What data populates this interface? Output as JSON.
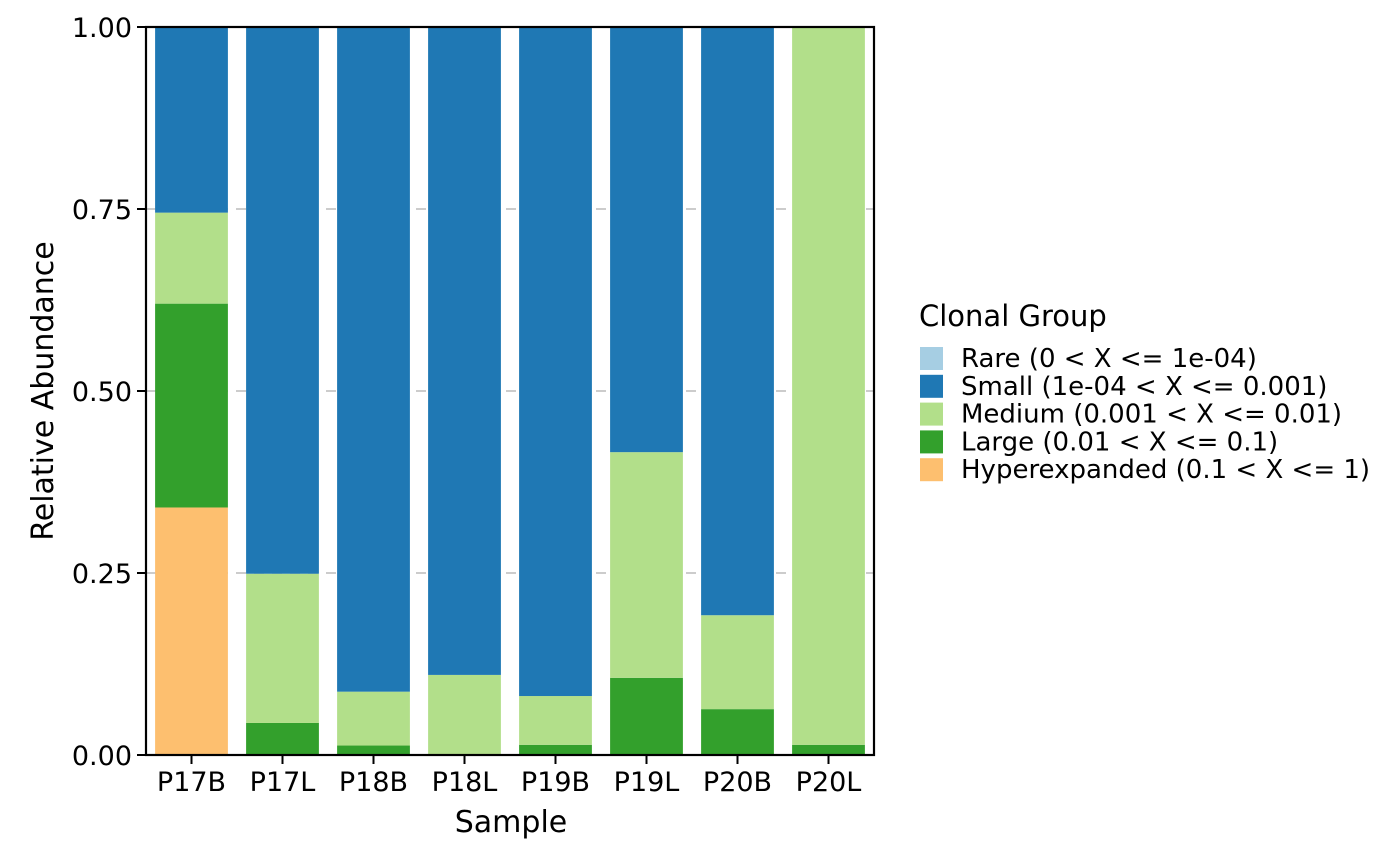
{
  "chart_data": {
    "type": "bar",
    "stacked": true,
    "title": "",
    "xlabel": "Sample",
    "ylabel": "Relative Abundance",
    "ylim": [
      0,
      1
    ],
    "yticks": [
      "0.00",
      "0.25",
      "0.50",
      "0.75",
      "1.00"
    ],
    "ytick_values": [
      0,
      0.25,
      0.5,
      0.75,
      1.0
    ],
    "grid": "horizontal-dashed",
    "categories": [
      "P17B",
      "P17L",
      "P18B",
      "P18L",
      "P19B",
      "P19L",
      "P20B",
      "P20L"
    ],
    "legend": {
      "title": "Clonal Group",
      "placement": "right",
      "entries": [
        {
          "label": "Rare (0 < X <= 1e-04)",
          "color": "#A6CEE3"
        },
        {
          "label": "Small (1e-04 < X <= 0.001)",
          "color": "#1F78B4"
        },
        {
          "label": "Medium (0.001 < X <= 0.01)",
          "color": "#B2DF8A"
        },
        {
          "label": "Large (0.01 < X <= 0.1)",
          "color": "#33A02C"
        },
        {
          "label": "Hyperexpanded (0.1 < X <= 1)",
          "color": "#FDBF6F"
        }
      ]
    },
    "stack_order_bottom_to_top": [
      "Hyperexpanded",
      "Large",
      "Medium",
      "Small",
      "Rare"
    ],
    "series": [
      {
        "name": "Hyperexpanded (0.1 < X <= 1)",
        "color": "#FDBF6F",
        "values": [
          0.34,
          0,
          0,
          0,
          0,
          0,
          0,
          0
        ]
      },
      {
        "name": "Large (0.01 < X <= 0.1)",
        "color": "#33A02C",
        "values": [
          0.28,
          0.044,
          0.013,
          0,
          0.014,
          0.106,
          0.063,
          0.014
        ]
      },
      {
        "name": "Medium (0.001 < X <= 0.01)",
        "color": "#B2DF8A",
        "values": [
          0.125,
          0.205,
          0.074,
          0.11,
          0.067,
          0.31,
          0.129,
          0.986
        ]
      },
      {
        "name": "Small (1e-04 < X <= 0.001)",
        "color": "#1F78B4",
        "values": [
          0.255,
          0.751,
          0.913,
          0.89,
          0.919,
          0.584,
          0.808,
          0
        ]
      },
      {
        "name": "Rare (0 < X <= 1e-04)",
        "color": "#A6CEE3",
        "values": [
          0,
          0,
          0,
          0,
          0,
          0,
          0,
          0
        ]
      }
    ]
  }
}
